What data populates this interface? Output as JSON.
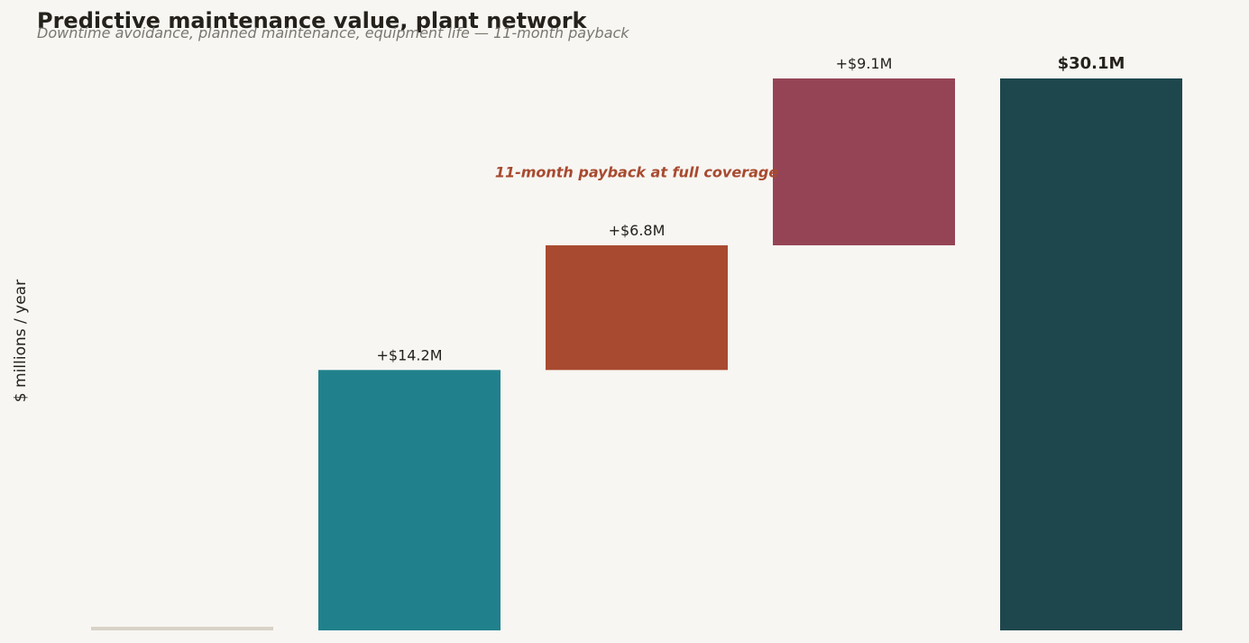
{
  "page": {
    "title": "Predictive maintenance value, plant network",
    "subtitle": "Downtime avoidance, planned maintenance, equipment life — 11-month payback"
  },
  "chart_data": {
    "type": "bar",
    "subtype": "waterfall",
    "ylabel": "$ millions / year",
    "xlabel": "",
    "ylim": [
      0,
      30.1
    ],
    "grid": false,
    "categories": [
      "",
      "",
      "",
      "",
      ""
    ],
    "steps": [
      {
        "kind": "baseline",
        "value": 0,
        "label": "",
        "color": "#d8d2c8"
      },
      {
        "kind": "delta",
        "value": 14.2,
        "label": "+$14.2M",
        "color": "#20818c"
      },
      {
        "kind": "delta",
        "value": 6.8,
        "label": "+$6.8M",
        "color": "#a84a30"
      },
      {
        "kind": "delta",
        "value": 9.1,
        "label": "+$9.1M",
        "color": "#954456"
      },
      {
        "kind": "total",
        "value": 30.1,
        "label": "$30.1M",
        "color": "#1e474d"
      }
    ],
    "annotation": {
      "text": "11-month payback at full coverage",
      "color": "#a84a30",
      "near_step": 2,
      "y": 25
    }
  }
}
